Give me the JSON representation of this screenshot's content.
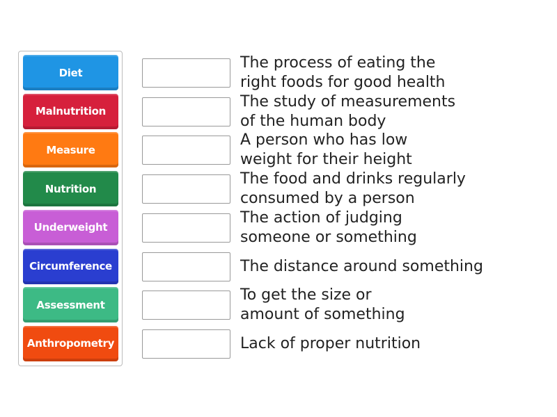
{
  "tiles": [
    {
      "label": "Diet",
      "color": "#1f95e4"
    },
    {
      "label": "Malnutrition",
      "color": "#d6203c"
    },
    {
      "label": "Measure",
      "color": "#ff7a12"
    },
    {
      "label": "Nutrition",
      "color": "#228a4a"
    },
    {
      "label": "Underweight",
      "color": "#c85ed6"
    },
    {
      "label": "Circumference",
      "color": "#2a3ed0"
    },
    {
      "label": "Assessment",
      "color": "#3dba85"
    },
    {
      "label": "Anthropometry",
      "color": "#f04b10"
    }
  ],
  "definitions": [
    {
      "line1": "The process of eating the",
      "line2": "right foods for good health"
    },
    {
      "line1": "The study of measurements",
      "line2": "of the human body"
    },
    {
      "line1": "A person who has low",
      "line2": "weight for their height"
    },
    {
      "line1": "The food and drinks regularly",
      "line2": "consumed by a person"
    },
    {
      "line1": "The action of judging",
      "line2": "someone or something"
    },
    {
      "line1": "The distance around something",
      "line2": ""
    },
    {
      "line1": "To get the size or",
      "line2": "amount of something"
    },
    {
      "line1": "Lack of proper nutrition",
      "line2": ""
    }
  ]
}
